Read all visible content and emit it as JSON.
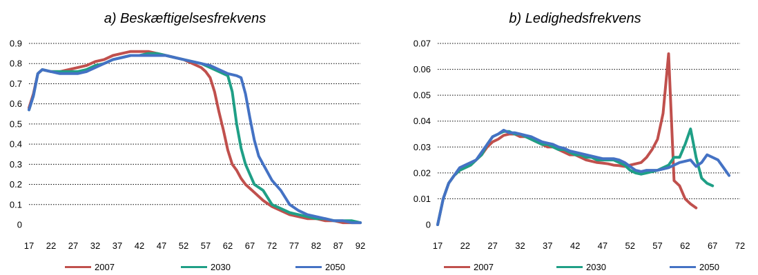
{
  "chart_data": [
    {
      "type": "line",
      "title": "a) Beskæftigelsesfrekvens",
      "xlabel": "",
      "ylabel": "",
      "xlim": [
        17,
        92
      ],
      "ylim": [
        0,
        0.9
      ],
      "yticks": [
        "0",
        "0.1",
        "0.2",
        "0.3",
        "0.4",
        "0.5",
        "0.6",
        "0.7",
        "0.8",
        "0.9"
      ],
      "xticks": [
        "17",
        "22",
        "27",
        "32",
        "37",
        "42",
        "47",
        "52",
        "57",
        "62",
        "67",
        "72",
        "77",
        "82",
        "87",
        "92"
      ],
      "grid": "horizontal dotted",
      "legend_position": "bottom",
      "series": [
        {
          "name": "2007",
          "color": "#c0504d",
          "x": [
            17,
            18,
            19,
            20,
            22,
            24,
            26,
            28,
            30,
            32,
            34,
            36,
            38,
            40,
            42,
            44,
            46,
            48,
            50,
            52,
            54,
            56,
            57,
            58,
            59,
            60,
            61,
            62,
            63,
            64,
            65,
            66,
            67,
            68,
            70,
            72,
            74,
            76,
            78,
            80,
            82,
            84,
            86,
            88,
            90,
            92
          ],
          "y": [
            0.58,
            0.65,
            0.75,
            0.77,
            0.76,
            0.76,
            0.77,
            0.78,
            0.79,
            0.81,
            0.82,
            0.84,
            0.85,
            0.86,
            0.86,
            0.86,
            0.85,
            0.84,
            0.83,
            0.82,
            0.8,
            0.78,
            0.76,
            0.73,
            0.66,
            0.56,
            0.47,
            0.37,
            0.3,
            0.27,
            0.23,
            0.2,
            0.18,
            0.16,
            0.12,
            0.09,
            0.07,
            0.05,
            0.04,
            0.03,
            0.03,
            0.02,
            0.02,
            0.01,
            0.01,
            0.01
          ]
        },
        {
          "name": "2030",
          "color": "#1f9f86",
          "x": [
            17,
            18,
            19,
            20,
            22,
            24,
            26,
            28,
            30,
            32,
            34,
            36,
            38,
            40,
            42,
            44,
            46,
            48,
            50,
            52,
            54,
            56,
            58,
            60,
            62,
            63,
            64,
            65,
            66,
            67,
            68,
            70,
            72,
            74,
            76,
            78,
            80,
            82,
            84,
            86,
            88,
            90,
            92
          ],
          "y": [
            0.57,
            0.64,
            0.75,
            0.77,
            0.76,
            0.76,
            0.76,
            0.76,
            0.77,
            0.79,
            0.8,
            0.82,
            0.83,
            0.84,
            0.84,
            0.85,
            0.85,
            0.84,
            0.83,
            0.82,
            0.81,
            0.8,
            0.78,
            0.76,
            0.74,
            0.66,
            0.5,
            0.38,
            0.3,
            0.25,
            0.2,
            0.17,
            0.1,
            0.08,
            0.06,
            0.05,
            0.04,
            0.03,
            0.03,
            0.02,
            0.02,
            0.02,
            0.01
          ]
        },
        {
          "name": "2050",
          "color": "#4472c4",
          "x": [
            17,
            18,
            19,
            20,
            22,
            24,
            26,
            28,
            30,
            32,
            34,
            36,
            38,
            40,
            42,
            44,
            46,
            48,
            50,
            52,
            54,
            56,
            58,
            60,
            62,
            64,
            65,
            66,
            67,
            68,
            69,
            70,
            72,
            74,
            76,
            78,
            80,
            82,
            84,
            86,
            88,
            90,
            92
          ],
          "y": [
            0.57,
            0.64,
            0.75,
            0.77,
            0.76,
            0.75,
            0.75,
            0.75,
            0.76,
            0.78,
            0.8,
            0.82,
            0.83,
            0.84,
            0.84,
            0.84,
            0.84,
            0.84,
            0.83,
            0.82,
            0.81,
            0.8,
            0.79,
            0.77,
            0.75,
            0.74,
            0.73,
            0.65,
            0.53,
            0.42,
            0.34,
            0.3,
            0.22,
            0.17,
            0.1,
            0.07,
            0.05,
            0.04,
            0.03,
            0.02,
            0.02,
            0.01,
            0.01
          ]
        }
      ]
    },
    {
      "type": "line",
      "title": "b) Ledighedsfrekvens",
      "xlabel": "",
      "ylabel": "",
      "xlim": [
        17,
        72
      ],
      "ylim": [
        0,
        0.07
      ],
      "yticks": [
        "0",
        "0.01",
        "0.02",
        "0.03",
        "0.04",
        "0.05",
        "0.06",
        "0.07"
      ],
      "xticks": [
        "17",
        "22",
        "27",
        "32",
        "37",
        "42",
        "47",
        "52",
        "57",
        "62",
        "67",
        "72"
      ],
      "grid": "horizontal dotted",
      "legend_position": "bottom",
      "series": [
        {
          "name": "2007",
          "color": "#c0504d",
          "x": [
            17,
            18,
            19,
            20,
            21,
            22,
            23,
            24,
            25,
            26,
            27,
            28,
            29,
            30,
            31,
            32,
            33,
            34,
            35,
            36,
            37,
            38,
            39,
            40,
            41,
            42,
            43,
            44,
            45,
            46,
            47,
            48,
            49,
            50,
            51,
            52,
            53,
            54,
            55,
            56,
            57,
            58,
            59,
            60,
            61,
            62,
            63,
            64
          ],
          "y": [
            0,
            0.01,
            0.016,
            0.019,
            0.021,
            0.022,
            0.023,
            0.025,
            0.027,
            0.03,
            0.032,
            0.033,
            0.0345,
            0.035,
            0.035,
            0.034,
            0.034,
            0.033,
            0.032,
            0.031,
            0.03,
            0.03,
            0.029,
            0.028,
            0.027,
            0.027,
            0.026,
            0.025,
            0.0245,
            0.024,
            0.0238,
            0.0235,
            0.023,
            0.0228,
            0.0225,
            0.023,
            0.0235,
            0.024,
            0.026,
            0.029,
            0.033,
            0.043,
            0.066,
            0.017,
            0.015,
            0.01,
            0.008,
            0.0065
          ]
        },
        {
          "name": "2030",
          "color": "#1f9f86",
          "x": [
            17,
            18,
            19,
            20,
            21,
            22,
            23,
            24,
            25,
            26,
            27,
            28,
            29,
            30,
            31,
            32,
            33,
            34,
            35,
            36,
            37,
            38,
            39,
            40,
            41,
            42,
            43,
            44,
            45,
            46,
            47,
            48,
            49,
            50,
            51,
            52,
            53,
            54,
            55,
            56,
            57,
            58,
            59,
            60,
            61,
            62,
            63,
            64,
            65,
            66,
            67
          ],
          "y": [
            0,
            0.01,
            0.016,
            0.019,
            0.021,
            0.022,
            0.023,
            0.025,
            0.027,
            0.031,
            0.034,
            0.035,
            0.036,
            0.036,
            0.035,
            0.035,
            0.034,
            0.033,
            0.032,
            0.031,
            0.031,
            0.03,
            0.029,
            0.029,
            0.028,
            0.027,
            0.027,
            0.026,
            0.026,
            0.025,
            0.025,
            0.025,
            0.025,
            0.024,
            0.023,
            0.021,
            0.02,
            0.0195,
            0.02,
            0.0205,
            0.021,
            0.022,
            0.023,
            0.026,
            0.026,
            0.031,
            0.037,
            0.026,
            0.018,
            0.016,
            0.015
          ]
        },
        {
          "name": "2050",
          "color": "#4472c4",
          "x": [
            17,
            18,
            19,
            20,
            21,
            22,
            23,
            24,
            25,
            26,
            27,
            28,
            29,
            30,
            31,
            32,
            33,
            34,
            35,
            36,
            37,
            38,
            39,
            40,
            41,
            42,
            43,
            44,
            45,
            46,
            47,
            48,
            49,
            50,
            51,
            52,
            53,
            54,
            55,
            56,
            57,
            58,
            59,
            60,
            61,
            62,
            63,
            64,
            65,
            66,
            67,
            68,
            69,
            70
          ],
          "y": [
            0,
            0.01,
            0.016,
            0.019,
            0.022,
            0.023,
            0.024,
            0.025,
            0.028,
            0.031,
            0.034,
            0.035,
            0.0365,
            0.0355,
            0.0355,
            0.035,
            0.0345,
            0.034,
            0.033,
            0.032,
            0.0315,
            0.031,
            0.03,
            0.0295,
            0.0285,
            0.028,
            0.0275,
            0.027,
            0.0265,
            0.026,
            0.0255,
            0.0255,
            0.0255,
            0.025,
            0.024,
            0.0225,
            0.021,
            0.0205,
            0.021,
            0.021,
            0.021,
            0.0215,
            0.022,
            0.023,
            0.024,
            0.0245,
            0.025,
            0.0225,
            0.024,
            0.027,
            0.026,
            0.025,
            0.022,
            0.019
          ]
        }
      ]
    }
  ]
}
